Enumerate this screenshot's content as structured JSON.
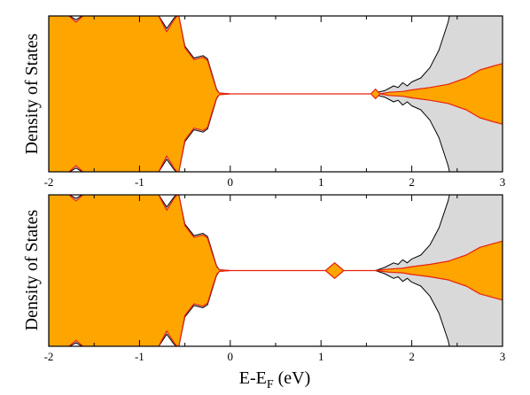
{
  "colors": {
    "total_fill": "#d9d9d9",
    "total_line": "#000000",
    "projected_fill": "#ffa500",
    "projected_line": "#e8210e"
  },
  "chart_data": [
    {
      "type": "area",
      "panel": "top",
      "ylabel": "Density of States",
      "xlabel": "",
      "xlim": [
        -2,
        3
      ],
      "x_ticks": [
        "-2",
        "-1",
        "0",
        "1",
        "2",
        "3"
      ],
      "y_ticks_labeled": false,
      "symmetric_about_center": true,
      "series": [
        {
          "role": "total",
          "x": [
            -2.0,
            -1.8,
            -1.7,
            -1.6,
            -1.5,
            -1.0,
            -0.8,
            -0.7,
            -0.62,
            -0.57,
            -0.5,
            -0.4,
            -0.3,
            -0.25,
            -0.2,
            -0.15,
            -0.12,
            0.0,
            1.0,
            1.55,
            1.62,
            1.7,
            1.8,
            1.85,
            1.9,
            1.95,
            2.0,
            2.1,
            2.2,
            2.3,
            2.4,
            2.42,
            3.0
          ],
          "upper": [
            1.0,
            1.0,
            0.93,
            1.0,
            1.0,
            1.0,
            1.0,
            0.82,
            0.95,
            1.0,
            0.6,
            0.45,
            0.48,
            0.44,
            0.25,
            0.06,
            0.01,
            0.0,
            0.0,
            0.0,
            0.02,
            0.04,
            0.1,
            0.08,
            0.14,
            0.1,
            0.15,
            0.2,
            0.33,
            0.55,
            0.9,
            1.0,
            1.0
          ]
        },
        {
          "role": "projected",
          "x": [
            -2.0,
            -1.8,
            -1.7,
            -1.6,
            -1.5,
            -1.0,
            -0.8,
            -0.7,
            -0.62,
            -0.57,
            -0.5,
            -0.4,
            -0.3,
            -0.25,
            -0.2,
            -0.15,
            -0.12,
            0.0,
            1.0,
            1.55,
            1.6,
            1.65,
            1.75,
            1.9,
            2.0,
            2.2,
            2.4,
            2.6,
            2.75,
            2.9,
            3.0
          ],
          "upper": [
            1.0,
            1.0,
            0.9,
            1.0,
            1.0,
            1.0,
            1.0,
            0.78,
            0.93,
            1.0,
            0.58,
            0.43,
            0.46,
            0.42,
            0.23,
            0.05,
            0.01,
            0.0,
            0.0,
            0.0,
            -0.06,
            0.0,
            0.02,
            0.03,
            0.05,
            0.08,
            0.12,
            0.2,
            0.3,
            0.35,
            0.38
          ]
        }
      ]
    },
    {
      "type": "area",
      "panel": "bottom",
      "ylabel": "Density of States",
      "xlabel": "E-E",
      "xlabel_subscript": "F",
      "xlabel_suffix": " (eV)",
      "xlim": [
        -2,
        3
      ],
      "x_ticks": [
        "-2",
        "-1",
        "0",
        "1",
        "2",
        "3"
      ],
      "y_ticks_labeled": false,
      "symmetric_about_center": true,
      "series": [
        {
          "role": "total",
          "x": [
            -2.0,
            -1.8,
            -1.7,
            -1.6,
            -1.5,
            -1.0,
            -0.8,
            -0.7,
            -0.62,
            -0.57,
            -0.5,
            -0.4,
            -0.3,
            -0.25,
            -0.2,
            -0.15,
            -0.12,
            0.0,
            1.0,
            1.05,
            1.15,
            1.25,
            1.3,
            1.6,
            1.7,
            1.8,
            1.85,
            1.9,
            1.95,
            2.0,
            2.1,
            2.2,
            2.3,
            2.4,
            2.42,
            3.0
          ],
          "upper": [
            1.0,
            1.0,
            0.93,
            1.0,
            1.0,
            1.0,
            1.0,
            0.82,
            0.95,
            1.0,
            0.6,
            0.45,
            0.48,
            0.44,
            0.25,
            0.06,
            0.01,
            0.0,
            0.0,
            0.0,
            -0.1,
            0.0,
            0.0,
            0.0,
            0.04,
            0.1,
            0.08,
            0.14,
            0.1,
            0.15,
            0.2,
            0.33,
            0.55,
            0.9,
            1.0,
            1.0
          ]
        },
        {
          "role": "projected",
          "x": [
            -2.0,
            -1.8,
            -1.7,
            -1.6,
            -1.5,
            -1.0,
            -0.8,
            -0.7,
            -0.62,
            -0.57,
            -0.5,
            -0.4,
            -0.3,
            -0.25,
            -0.2,
            -0.15,
            -0.12,
            0.0,
            1.0,
            1.05,
            1.15,
            1.25,
            1.3,
            1.6,
            1.75,
            1.9,
            2.0,
            2.2,
            2.4,
            2.6,
            2.75,
            2.9,
            3.0
          ],
          "upper": [
            1.0,
            1.0,
            0.9,
            1.0,
            1.0,
            1.0,
            1.0,
            0.78,
            0.93,
            1.0,
            0.58,
            0.43,
            0.46,
            0.42,
            0.23,
            0.05,
            0.01,
            0.0,
            0.0,
            0.0,
            -0.1,
            0.0,
            0.0,
            0.0,
            0.02,
            0.03,
            0.05,
            0.08,
            0.12,
            0.2,
            0.3,
            0.35,
            0.38
          ]
        }
      ]
    }
  ]
}
